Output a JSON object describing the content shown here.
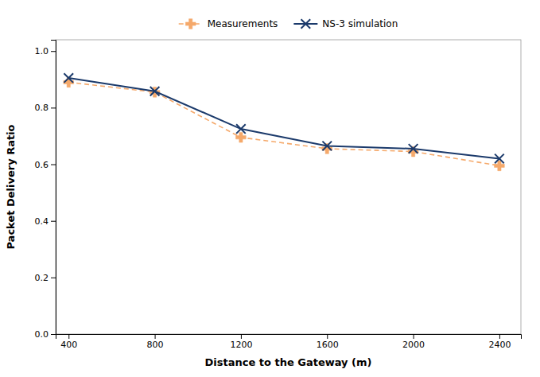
{
  "chart_data": {
    "type": "line",
    "x": [
      400,
      800,
      1200,
      1600,
      2000,
      2400
    ],
    "xlabel": "Distance to the Gateway (m)",
    "ylabel": "Packet Delivery Ratio",
    "xlim": [
      340,
      2500
    ],
    "ylim": [
      0.0,
      1.04
    ],
    "xticks": [
      400,
      800,
      1200,
      1600,
      2000,
      2400
    ],
    "yticks": [
      {
        "value": 0.0,
        "label": "0.0"
      },
      0.2,
      0.4,
      0.6,
      0.8,
      {
        "value": 1.0,
        "label": "1.0"
      }
    ],
    "grid": false,
    "legend": "top",
    "series": [
      {
        "name": "Measurements",
        "color": "#f5a96b",
        "values": [
          0.89,
          0.855,
          0.695,
          0.655,
          0.645,
          0.595
        ],
        "marker": "plus",
        "line_style": "dashed"
      },
      {
        "name": "NS-3 simulation",
        "color": "#1b3a6b",
        "values": [
          0.905,
          0.858,
          0.725,
          0.665,
          0.655,
          0.62
        ],
        "marker": "x",
        "line_style": "solid"
      }
    ]
  }
}
